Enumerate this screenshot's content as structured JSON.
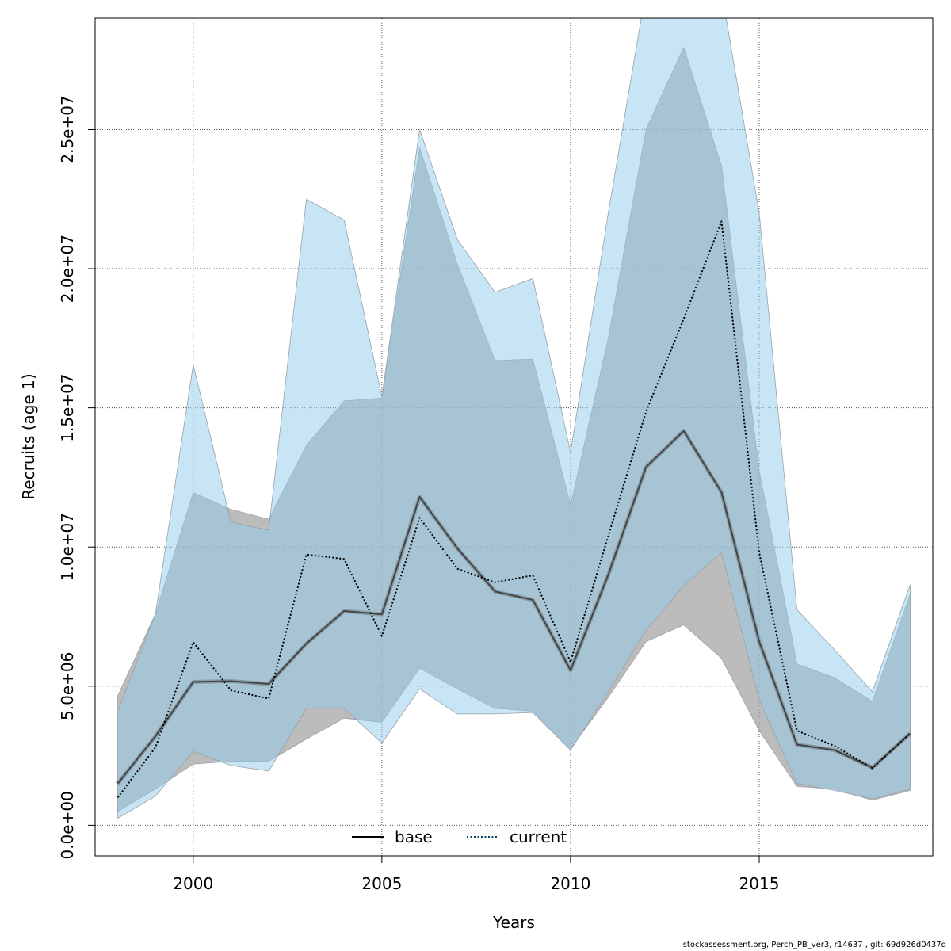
{
  "chart_data": {
    "type": "line",
    "title": "",
    "xlabel": "Years",
    "ylabel": "Recruits (age 1)",
    "xlim": [
      1997.4,
      2019.6
    ],
    "ylim": [
      -1100000,
      29000000
    ],
    "x_ticks": [
      2000,
      2005,
      2010,
      2015
    ],
    "x_tick_labels": [
      "2000",
      "2005",
      "2010",
      "2015"
    ],
    "y_ticks": [
      0,
      5000000,
      10000000,
      15000000,
      20000000,
      25000000
    ],
    "y_tick_labels": [
      "0.0e+00",
      "5.0e+06",
      "1.0e+07",
      "1.5e+07",
      "2.0e+07",
      "2.5e+07"
    ],
    "grid": true,
    "legend_position": "bottom",
    "x": [
      1998,
      1999,
      2000,
      2001,
      2002,
      2003,
      2004,
      2005,
      2006,
      2007,
      2008,
      2009,
      2010,
      2011,
      2012,
      2013,
      2014,
      2015,
      2016,
      2017,
      2018,
      2019
    ],
    "series": [
      {
        "name": "base",
        "style": "solid",
        "color": "#444444",
        "band_color": "#a0a0a0",
        "values": [
          1500000,
          3200000,
          5150000,
          5180000,
          5080000,
          6530000,
          7700000,
          7580000,
          11800000,
          9950000,
          8400000,
          8100000,
          5570000,
          9000000,
          12870000,
          14170000,
          11970000,
          6600000,
          2900000,
          2700000,
          2070000,
          3300000
        ],
        "lower": [
          500000,
          1300000,
          2200000,
          2300000,
          2300000,
          3100000,
          3850000,
          3700000,
          5650000,
          4900000,
          4200000,
          4100000,
          2750000,
          4600000,
          6600000,
          7200000,
          6000000,
          3400000,
          1400000,
          1300000,
          900000,
          1250000
        ],
        "upper": [
          4650000,
          7600000,
          11950000,
          11350000,
          11000000,
          13650000,
          15250000,
          15350000,
          24350000,
          20150000,
          16700000,
          16750000,
          11500000,
          17500000,
          25000000,
          27950000,
          23700000,
          12750000,
          5800000,
          5300000,
          4450000,
          8300000
        ]
      },
      {
        "name": "current",
        "style": "dotted",
        "color": "#0b3d5c",
        "band_color": "#8fcbec",
        "values": [
          1000000,
          2800000,
          6580000,
          4850000,
          4550000,
          9730000,
          9570000,
          6800000,
          11050000,
          9220000,
          8730000,
          8980000,
          5870000,
          10400000,
          14850000,
          18200000,
          21700000,
          9800000,
          3400000,
          2850000,
          2050000,
          3300000
        ],
        "lower": [
          250000,
          1050000,
          2650000,
          2150000,
          1950000,
          4200000,
          4200000,
          2950000,
          4900000,
          4000000,
          4000000,
          4050000,
          2700000,
          4800000,
          7000000,
          8600000,
          9800000,
          4500000,
          1500000,
          1250000,
          950000,
          1300000
        ],
        "upper": [
          4100000,
          7600000,
          16550000,
          10900000,
          10600000,
          22500000,
          21750000,
          15400000,
          25000000,
          21050000,
          19150000,
          19650000,
          13400000,
          22000000,
          30000000,
          30000000,
          30000000,
          22000000,
          7750000,
          6300000,
          4800000,
          8650000
        ]
      }
    ]
  },
  "footer_text": "stockassessment.org, Perch_PB_ver3, r14637 , git: 69d926d0437d"
}
